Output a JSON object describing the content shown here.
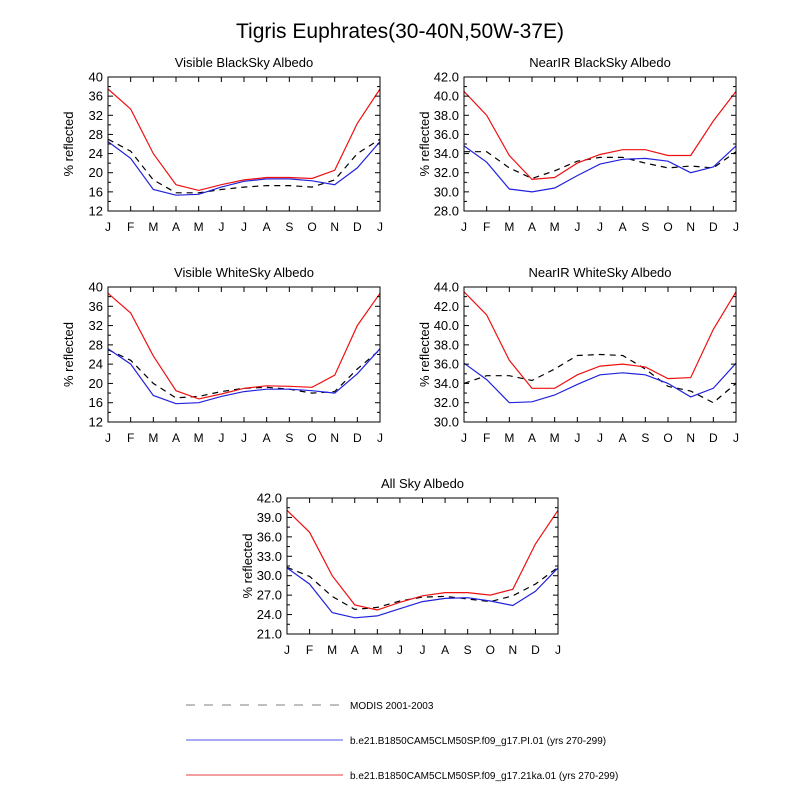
{
  "title": "Tigris Euphrates(30-40N,50W-37E)",
  "colors": {
    "modis": "#000000",
    "pi": "#2222dd",
    "ka": "#ee1111",
    "legend_modis": "#999999",
    "legend_pi": "#7777ee",
    "legend_ka": "#ee6666"
  },
  "legend": [
    {
      "key": "modis",
      "label": "MODIS 2001-2003"
    },
    {
      "key": "pi",
      "label": "b.e21.B1850CAM5CLM50SP.f09_g17.PI.01 (yrs 270-299)"
    },
    {
      "key": "ka",
      "label": "b.e21.B1850CAM5CLM50SP.f09_g17.21ka.01 (yrs 270-299)"
    }
  ],
  "chart_data": [
    {
      "type": "line",
      "title": "Visible BlackSky Albedo",
      "ylabel": "% reflected",
      "categories": [
        "J",
        "F",
        "M",
        "A",
        "M",
        "J",
        "J",
        "A",
        "S",
        "O",
        "N",
        "D",
        "J"
      ],
      "ylim": [
        12,
        40
      ],
      "yticks": [
        "12",
        "16",
        "20",
        "24",
        "28",
        "32",
        "36",
        "40"
      ],
      "series": [
        {
          "key": "modis",
          "values": [
            27.0,
            24.5,
            18.5,
            15.8,
            15.8,
            16.5,
            17.0,
            17.3,
            17.3,
            17.0,
            18.5,
            24.0,
            27.0
          ]
        },
        {
          "key": "pi",
          "values": [
            26.5,
            23.0,
            16.5,
            15.3,
            15.5,
            17.0,
            18.2,
            18.7,
            18.7,
            18.3,
            17.5,
            21.0,
            26.5
          ]
        },
        {
          "key": "ka",
          "values": [
            37.5,
            33.3,
            24.0,
            17.5,
            16.3,
            17.5,
            18.5,
            19.0,
            19.0,
            18.8,
            20.5,
            30.3,
            37.5
          ]
        }
      ]
    },
    {
      "type": "line",
      "title": "NearIR BlackSky Albedo",
      "ylabel": "% reflected",
      "categories": [
        "J",
        "F",
        "M",
        "A",
        "M",
        "J",
        "J",
        "A",
        "S",
        "O",
        "N",
        "D",
        "J"
      ],
      "ylim": [
        28,
        42
      ],
      "yticks": [
        "28.0",
        "30.0",
        "32.0",
        "34.0",
        "36.0",
        "38.0",
        "40.0",
        "42.0"
      ],
      "series": [
        {
          "key": "modis",
          "values": [
            34.2,
            34.2,
            32.5,
            31.4,
            32.2,
            33.2,
            33.6,
            33.6,
            33.0,
            32.5,
            32.7,
            32.5,
            34.2
          ]
        },
        {
          "key": "pi",
          "values": [
            34.8,
            33.1,
            30.3,
            30.0,
            30.4,
            31.7,
            32.9,
            33.4,
            33.5,
            33.2,
            32.0,
            32.6,
            34.8
          ]
        },
        {
          "key": "ka",
          "values": [
            40.5,
            38.0,
            33.8,
            31.3,
            31.5,
            33.0,
            33.9,
            34.4,
            34.4,
            33.8,
            33.8,
            37.4,
            40.5
          ]
        }
      ]
    },
    {
      "type": "line",
      "title": "Visible WhiteSky Albedo",
      "ylabel": "% reflected",
      "categories": [
        "J",
        "F",
        "M",
        "A",
        "M",
        "J",
        "J",
        "A",
        "S",
        "O",
        "N",
        "D",
        "J"
      ],
      "ylim": [
        12,
        40
      ],
      "yticks": [
        "12",
        "16",
        "20",
        "24",
        "28",
        "32",
        "36",
        "40"
      ],
      "series": [
        {
          "key": "modis",
          "values": [
            27.0,
            24.8,
            20.0,
            17.0,
            17.3,
            18.3,
            19.0,
            19.2,
            18.8,
            18.0,
            18.3,
            23.0,
            27.0
          ]
        },
        {
          "key": "pi",
          "values": [
            27.2,
            24.0,
            17.5,
            15.8,
            16.0,
            17.3,
            18.3,
            18.8,
            18.8,
            18.5,
            18.0,
            22.0,
            27.2
          ]
        },
        {
          "key": "ka",
          "values": [
            38.7,
            34.6,
            25.7,
            18.5,
            16.8,
            17.8,
            19.0,
            19.5,
            19.4,
            19.2,
            21.7,
            32.0,
            38.7
          ]
        }
      ]
    },
    {
      "type": "line",
      "title": "NearIR WhiteSky Albedo",
      "ylabel": "% reflected",
      "categories": [
        "J",
        "F",
        "M",
        "A",
        "M",
        "J",
        "J",
        "A",
        "S",
        "O",
        "N",
        "D",
        "J"
      ],
      "ylim": [
        30,
        44
      ],
      "yticks": [
        "30.0",
        "32.0",
        "34.0",
        "36.0",
        "38.0",
        "40.0",
        "42.0",
        "44.0"
      ],
      "series": [
        {
          "key": "modis",
          "values": [
            34.0,
            34.8,
            34.8,
            34.3,
            35.5,
            36.9,
            37.0,
            36.9,
            35.5,
            33.7,
            33.2,
            32.0,
            34.0
          ]
        },
        {
          "key": "pi",
          "values": [
            36.1,
            34.4,
            32.0,
            32.1,
            32.8,
            33.9,
            34.9,
            35.1,
            34.9,
            34.0,
            32.6,
            33.5,
            36.1
          ]
        },
        {
          "key": "ka",
          "values": [
            43.5,
            41.1,
            36.4,
            33.5,
            33.5,
            34.9,
            35.8,
            36.0,
            35.7,
            34.5,
            34.6,
            39.6,
            43.5
          ]
        }
      ]
    },
    {
      "type": "line",
      "title": "All Sky Albedo",
      "ylabel": "% reflected",
      "categories": [
        "J",
        "F",
        "M",
        "A",
        "M",
        "J",
        "J",
        "A",
        "S",
        "O",
        "N",
        "D",
        "J"
      ],
      "ylim": [
        21,
        42
      ],
      "yticks": [
        "21.0",
        "24.0",
        "27.0",
        "30.0",
        "33.0",
        "36.0",
        "39.0",
        "42.0"
      ],
      "series": [
        {
          "key": "modis",
          "values": [
            31.3,
            29.9,
            26.8,
            24.8,
            25.1,
            26.1,
            26.7,
            26.8,
            26.4,
            26.0,
            26.9,
            28.7,
            31.3
          ]
        },
        {
          "key": "pi",
          "values": [
            31.2,
            28.7,
            24.3,
            23.5,
            23.8,
            24.9,
            26.0,
            26.5,
            26.6,
            26.1,
            25.4,
            27.6,
            31.2
          ]
        },
        {
          "key": "ka",
          "values": [
            40.1,
            36.7,
            30.0,
            25.5,
            24.7,
            25.9,
            26.9,
            27.4,
            27.4,
            27.0,
            27.9,
            34.9,
            40.1
          ]
        }
      ]
    }
  ]
}
